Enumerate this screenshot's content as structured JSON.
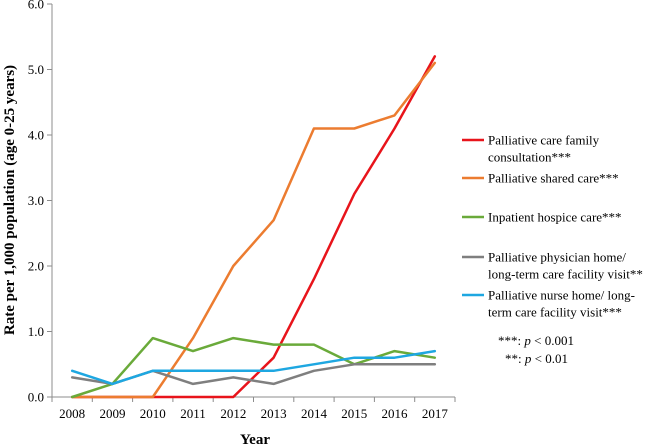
{
  "chart_data": {
    "type": "line",
    "title": "",
    "xlabel": "Year",
    "ylabel": "Rate per 1,000 population (age 0-25 years)",
    "x": [
      "2008",
      "2009",
      "2010",
      "2011",
      "2012",
      "2013",
      "2014",
      "2015",
      "2016",
      "2017"
    ],
    "ylim": [
      0,
      6
    ],
    "yticks": [
      "0.0",
      "1.0",
      "2.0",
      "3.0",
      "4.0",
      "5.0",
      "6.0"
    ],
    "grid": false,
    "legend": "right",
    "series": [
      {
        "name_lines": [
          "Palliative care family",
          "consultation***"
        ],
        "color": "#e8141b",
        "values": [
          0,
          0,
          0,
          0,
          0,
          0.6,
          1.8,
          3.1,
          4.1,
          5.2
        ]
      },
      {
        "name_lines": [
          "Palliative shared care***"
        ],
        "color": "#ec7c30",
        "values": [
          0,
          0,
          0,
          0.9,
          2.0,
          2.7,
          4.1,
          4.1,
          4.3,
          5.1
        ]
      },
      {
        "name_lines": [
          "Inpatient hospice care***"
        ],
        "color": "#6aaa3a",
        "values": [
          0,
          0.2,
          0.9,
          0.7,
          0.9,
          0.8,
          0.8,
          0.5,
          0.7,
          0.6
        ]
      },
      {
        "name_lines": [
          "Palliative physician home/",
          "long-term care facility visit**"
        ],
        "color": "#7f7f7f",
        "values": [
          0.3,
          0.2,
          0.4,
          0.2,
          0.3,
          0.2,
          0.4,
          0.5,
          0.5,
          0.5
        ]
      },
      {
        "name_lines": [
          "Palliative nurse home/ long-",
          "term care facility visit***"
        ],
        "color": "#1ea7e1",
        "values": [
          0.4,
          0.2,
          0.4,
          0.4,
          0.4,
          0.4,
          0.5,
          0.6,
          0.6,
          0.7
        ]
      }
    ],
    "annotations": {
      "p001_prefix": "***: ",
      "p001_p": "p",
      "p001_rest": " < 0.001",
      "p01_prefix": "**: ",
      "p01_p": "p",
      "p01_rest": " < 0.01"
    }
  }
}
